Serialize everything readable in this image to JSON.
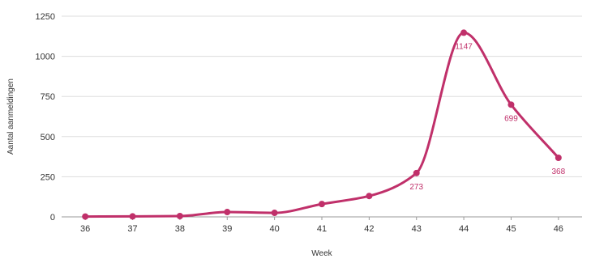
{
  "chart_data": {
    "type": "line",
    "xlabel": "Week",
    "ylabel": "Aantal aanmeldingen",
    "ylim": [
      0,
      1250
    ],
    "yticks": [
      0,
      250,
      500,
      750,
      1000,
      1250
    ],
    "categories": [
      "36",
      "37",
      "38",
      "39",
      "40",
      "41",
      "42",
      "43",
      "44",
      "45",
      "46"
    ],
    "series": [
      {
        "values": [
          2,
          3,
          5,
          30,
          25,
          80,
          130,
          273,
          1147,
          699,
          368
        ],
        "color": "#c0306a"
      }
    ],
    "data_labels": [
      {
        "index": 7,
        "text": "273"
      },
      {
        "index": 8,
        "text": "1147"
      },
      {
        "index": 9,
        "text": "699"
      },
      {
        "index": 10,
        "text": "368"
      }
    ],
    "grid": "horizontal",
    "line_style": "smooth"
  },
  "colors": {
    "series": "#c0306a",
    "grid": "#dddddd",
    "axis": "#999999",
    "text": "#333333"
  }
}
